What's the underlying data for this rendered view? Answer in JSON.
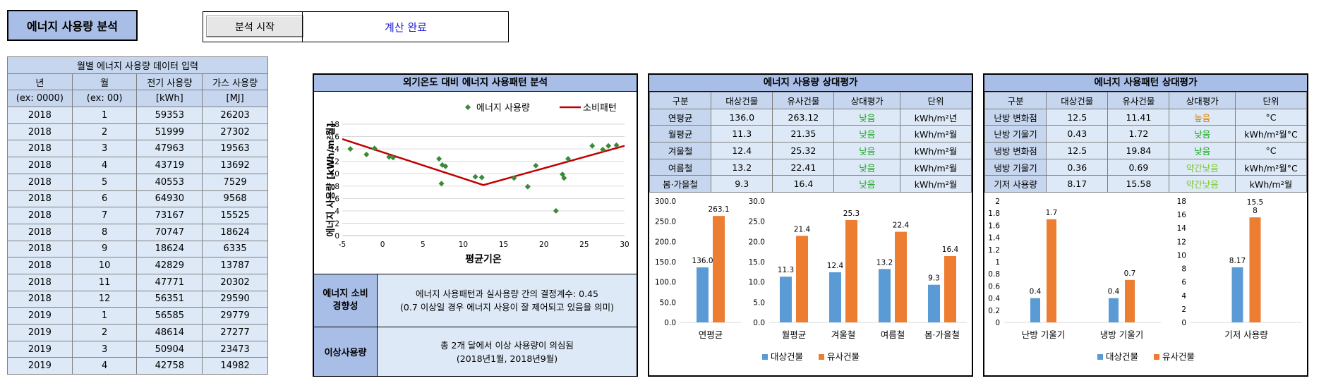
{
  "app": {
    "title": "에너지 사용량 분석",
    "start_button": "분석 시작",
    "status": "계산 완료"
  },
  "colors": {
    "header": "#a9bee6",
    "table_header": "#c6d6ee",
    "table_cell": "#dde9f6",
    "target": "#5b9bd5",
    "similar": "#ed7d31",
    "scatter_marker": "#3a8a3a",
    "pattern_line": "#c00000",
    "low": "#17a81a",
    "high": "#e37f00",
    "slightly_low": "#7ecb2c"
  },
  "monthly": {
    "title": "월별 에너지 사용량 데이터 입력",
    "headers": [
      "년",
      "월",
      "전기 사용량",
      "가스 사용량"
    ],
    "units": [
      "(ex: 0000)",
      "(ex: 00)",
      "[kWh]",
      "[MJ]"
    ],
    "rows": [
      [
        "2018",
        "1",
        "59353",
        "26203"
      ],
      [
        "2018",
        "2",
        "51999",
        "27302"
      ],
      [
        "2018",
        "3",
        "47963",
        "19563"
      ],
      [
        "2018",
        "4",
        "43719",
        "13692"
      ],
      [
        "2018",
        "5",
        "40553",
        "7529"
      ],
      [
        "2018",
        "6",
        "64930",
        "9568"
      ],
      [
        "2018",
        "7",
        "73167",
        "15525"
      ],
      [
        "2018",
        "8",
        "70747",
        "18624"
      ],
      [
        "2018",
        "9",
        "18624",
        "6335"
      ],
      [
        "2018",
        "10",
        "42829",
        "13787"
      ],
      [
        "2018",
        "11",
        "47771",
        "20302"
      ],
      [
        "2018",
        "12",
        "56351",
        "29590"
      ],
      [
        "2019",
        "1",
        "56585",
        "29779"
      ],
      [
        "2019",
        "2",
        "48614",
        "27277"
      ],
      [
        "2019",
        "3",
        "50904",
        "23473"
      ],
      [
        "2019",
        "4",
        "42758",
        "14982"
      ]
    ]
  },
  "pattern": {
    "title": "외기온도 대비 에너지 사용패턴 분석",
    "consumption_label": "에너지 소비\n경향성",
    "consumption_text": "에너지 사용패턴과 실사용량 간의 결정계수: 0.45\n(0.7 이상일 경우 에너지 사용이 잘 제어되고 있음을 의미)",
    "anomaly_label": "이상사용량",
    "anomaly_text": "총 2개 달에서 이상 사용량이 의심됨\n(2018년1월, 2018년9월)"
  },
  "usage_eval": {
    "title": "에너지 사용량 상대평가",
    "headers": [
      "구분",
      "대상건물",
      "유사건물",
      "상대평가",
      "단위"
    ],
    "rows": [
      {
        "label": "연평균",
        "target": "136.0",
        "similar": "263.12",
        "eval": "낮음",
        "unit": "kWh/m²년",
        "cls": "low"
      },
      {
        "label": "월평균",
        "target": "11.3",
        "similar": "21.35",
        "eval": "낮음",
        "unit": "kWh/m²월",
        "cls": "low"
      },
      {
        "label": "겨울철",
        "target": "12.4",
        "similar": "25.32",
        "eval": "낮음",
        "unit": "kWh/m²월",
        "cls": "low"
      },
      {
        "label": "여름철",
        "target": "13.2",
        "similar": "22.41",
        "eval": "낮음",
        "unit": "kWh/m²월",
        "cls": "low"
      },
      {
        "label": "봄·가을철",
        "target": "9.3",
        "similar": "16.4",
        "eval": "낮음",
        "unit": "kWh/m²월",
        "cls": "low"
      }
    ],
    "legend": [
      "대상건물",
      "유사건물"
    ]
  },
  "pattern_eval": {
    "title": "에너지 사용패턴 상대평가",
    "headers": [
      "구분",
      "대상건물",
      "유사건물",
      "상대평가",
      "단위"
    ],
    "rows": [
      {
        "label": "난방 변화점",
        "target": "12.5",
        "similar": "11.41",
        "eval": "높음",
        "unit": "°C",
        "cls": "high"
      },
      {
        "label": "난방 기울기",
        "target": "0.43",
        "similar": "1.72",
        "eval": "낮음",
        "unit": "kWh/m²월°C",
        "cls": "low"
      },
      {
        "label": "냉방 변화점",
        "target": "12.5",
        "similar": "19.84",
        "eval": "낮음",
        "unit": "°C",
        "cls": "low"
      },
      {
        "label": "냉방 기울기",
        "target": "0.36",
        "similar": "0.69",
        "eval": "약간낮음",
        "unit": "kWh/m²월°C",
        "cls": "slow"
      },
      {
        "label": "기저 사용량",
        "target": "8.17",
        "similar": "15.58",
        "eval": "약간낮음",
        "unit": "kWh/m²월",
        "cls": "slow"
      }
    ],
    "legend": [
      "대상건물",
      "유사건물"
    ]
  },
  "chart_data": [
    {
      "type": "scatter",
      "title": "",
      "xlabel": "평균기온",
      "ylabel": "에너지 사용량 [kWh/m²월]",
      "xlim": [
        -5,
        30
      ],
      "ylim": [
        0,
        18
      ],
      "xticks": [
        -5,
        0,
        5,
        10,
        15,
        20,
        25,
        30
      ],
      "yticks": [
        0,
        2,
        4,
        6,
        8,
        10,
        12,
        14,
        16,
        18
      ],
      "legend": [
        "에너지 사용량",
        "소비패턴"
      ],
      "points": [
        [
          -4,
          14
        ],
        [
          -1,
          14.1
        ],
        [
          -2,
          13.1
        ],
        [
          0.8,
          12.7
        ],
        [
          1.3,
          12.6
        ],
        [
          7,
          12.4
        ],
        [
          7.4,
          11.4
        ],
        [
          7.8,
          11.2
        ],
        [
          7.3,
          8.4
        ],
        [
          11.5,
          9.5
        ],
        [
          12.3,
          9.4
        ],
        [
          16.3,
          9.3
        ],
        [
          18,
          7.9
        ],
        [
          19,
          11.3
        ],
        [
          21.5,
          4
        ],
        [
          22.3,
          9.9
        ],
        [
          22.5,
          9.3
        ],
        [
          23,
          12.4
        ],
        [
          26,
          14.5
        ],
        [
          27.3,
          13.9
        ],
        [
          28,
          14.5
        ],
        [
          29,
          14.6
        ]
      ],
      "pattern_line": [
        [
          -5,
          15.6
        ],
        [
          12.5,
          8.17
        ],
        [
          30,
          14.5
        ]
      ]
    },
    {
      "type": "bar",
      "title": "",
      "categories": [
        "연평균"
      ],
      "series": [
        {
          "name": "대상건물",
          "values": [
            136.0
          ]
        },
        {
          "name": "유사건물",
          "values": [
            263.1
          ]
        }
      ],
      "ylim": [
        0,
        300
      ],
      "yticks": [
        "0.0",
        "50.0",
        "100.0",
        "150.0",
        "200.0",
        "250.0",
        "300.0"
      ]
    },
    {
      "type": "bar",
      "title": "",
      "categories": [
        "월평균",
        "겨울철",
        "여름철",
        "봄·가을철"
      ],
      "series": [
        {
          "name": "대상건물",
          "values": [
            11.3,
            12.4,
            13.2,
            9.3
          ]
        },
        {
          "name": "유사건물",
          "values": [
            21.4,
            25.3,
            22.4,
            16.4
          ]
        }
      ],
      "ylim": [
        0,
        30
      ],
      "yticks": [
        "0.0",
        "5.0",
        "10.0",
        "15.0",
        "20.0",
        "25.0",
        "30.0"
      ]
    },
    {
      "type": "bar",
      "title": "",
      "categories": [
        "난방 기울기",
        "냉방 기울기"
      ],
      "series": [
        {
          "name": "대상건물",
          "values": [
            0.4,
            0.4
          ]
        },
        {
          "name": "유사건물",
          "values": [
            1.7,
            0.7
          ]
        }
      ],
      "ylim": [
        0,
        2
      ],
      "yticks": [
        "0",
        "0.2",
        "0.4",
        "0.6",
        "0.8",
        "1",
        "1.2",
        "1.4",
        "1.6",
        "1.8",
        "2"
      ]
    },
    {
      "type": "bar",
      "title": "",
      "categories": [
        "기저 사용량"
      ],
      "series": [
        {
          "name": "대상건물",
          "values": [
            8.17
          ]
        },
        {
          "name": "유사건물",
          "values": [
            15.58
          ]
        }
      ],
      "data_labels": [
        [
          "8.17"
        ],
        [
          "15.5\n8"
        ]
      ],
      "ylim": [
        0,
        18
      ],
      "yticks": [
        "0",
        "2",
        "4",
        "6",
        "8",
        "10",
        "12",
        "14",
        "16",
        "18"
      ]
    }
  ]
}
